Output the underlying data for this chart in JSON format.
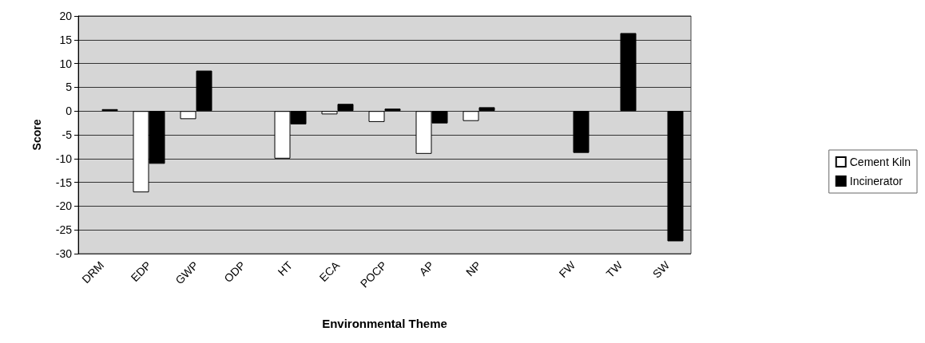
{
  "chart_data": {
    "type": "bar",
    "xlabel": "Environmental Theme",
    "ylabel": "Score",
    "categories": [
      "DRM",
      "EDP",
      "GWP",
      "ODP",
      "HT",
      "ECA",
      "POCP",
      "AP",
      "NP",
      null,
      "FW",
      "TW",
      "SW"
    ],
    "series": [
      {
        "name": "Cement Kiln",
        "color": "#ffffff",
        "values": [
          null,
          -17.1,
          -1.7,
          null,
          -10,
          -0.7,
          -2.3,
          -9,
          -2.1,
          null,
          null,
          null,
          null
        ]
      },
      {
        "name": "Incinerator",
        "color": "#000000",
        "values": [
          0.4,
          -11.1,
          8.5,
          null,
          -2.8,
          1.5,
          0.5,
          -2.6,
          0.8,
          null,
          -8.8,
          16.4,
          -27.4
        ]
      }
    ],
    "ylim": [
      -30,
      20
    ],
    "yticks": [
      -30,
      -25,
      -20,
      -15,
      -10,
      -5,
      0,
      5,
      10,
      15,
      20
    ],
    "grid": "y",
    "legend": "right"
  }
}
